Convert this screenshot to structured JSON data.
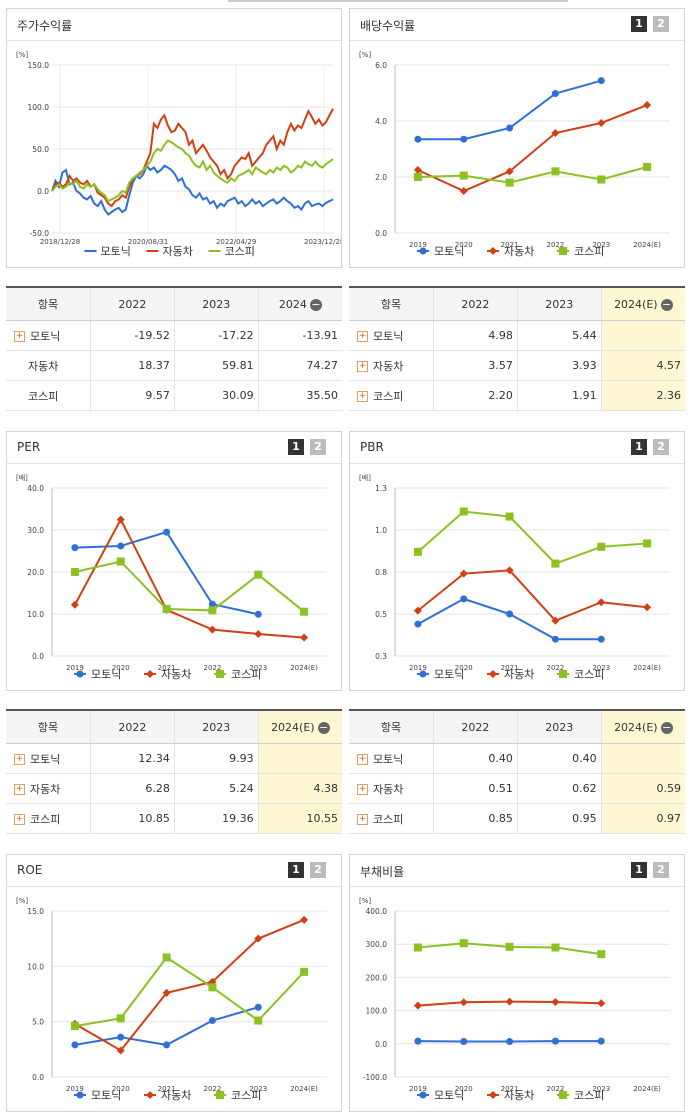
{
  "legend": {
    "motonik": "모토닉",
    "auto": "자동차",
    "kospi": "코스피"
  },
  "colors": {
    "motonik": "#2f6fd6",
    "auto": "#d23f13",
    "kospi": "#8dc021"
  },
  "stock_panel": {
    "title": "주가수익률"
  },
  "div_panel": {
    "title": "배당수익률",
    "page1": "1",
    "page2": "2"
  },
  "per_panel": {
    "title": "PER",
    "page1": "1",
    "page2": "2"
  },
  "pbr_panel": {
    "title": "PBR",
    "page1": "1",
    "page2": "2"
  },
  "roe_panel": {
    "title": "ROE",
    "page1": "1",
    "page2": "2"
  },
  "debt_panel": {
    "title": "부채비율",
    "page1": "1",
    "page2": "2"
  },
  "chart_data": [
    {
      "id": "stock",
      "type": "line",
      "unit": "[%]",
      "ylim": [
        -50,
        150
      ],
      "yticks": [
        "150.0",
        "100.0",
        "50.0",
        "0.0",
        "-50.0"
      ],
      "xticks": [
        "2018/12/28",
        "2020/08/31",
        "2022/04/29",
        "2023/12/28"
      ],
      "series": [
        {
          "key": "motonik",
          "values": [
            0,
            12,
            5,
            22,
            25,
            8,
            10,
            0,
            -3,
            -8,
            -10,
            -6,
            -15,
            -18,
            -12,
            -22,
            -28,
            -25,
            -22,
            -20,
            -25,
            -22,
            -5,
            10,
            18,
            15,
            20,
            30,
            25,
            28,
            22,
            25,
            30,
            28,
            25,
            20,
            12,
            15,
            5,
            2,
            -5,
            -8,
            -3,
            -10,
            -8,
            -15,
            -12,
            -20,
            -15,
            -18,
            -12,
            -10,
            -8,
            -15,
            -12,
            -18,
            -15,
            -10,
            -15,
            -12,
            -18,
            -15,
            -12,
            -10,
            -15,
            -12,
            -8,
            -12,
            -15,
            -20,
            -18,
            -22,
            -15,
            -12,
            -18,
            -16,
            -15,
            -18,
            -14,
            -12,
            -10
          ]
        },
        {
          "key": "auto",
          "values": [
            0,
            8,
            10,
            5,
            8,
            18,
            12,
            15,
            10,
            8,
            12,
            5,
            8,
            -2,
            -5,
            -8,
            -15,
            -18,
            -12,
            -10,
            -5,
            -8,
            5,
            15,
            18,
            20,
            25,
            35,
            45,
            80,
            75,
            85,
            90,
            78,
            70,
            72,
            80,
            75,
            70,
            55,
            60,
            45,
            50,
            55,
            48,
            40,
            35,
            30,
            20,
            25,
            15,
            20,
            30,
            35,
            40,
            38,
            45,
            30,
            35,
            40,
            45,
            55,
            60,
            65,
            50,
            60,
            55,
            70,
            80,
            72,
            78,
            75,
            85,
            95,
            88,
            80,
            85,
            78,
            82,
            90,
            98
          ]
        },
        {
          "key": "kospi",
          "values": [
            0,
            5,
            8,
            3,
            5,
            10,
            8,
            12,
            5,
            3,
            8,
            5,
            8,
            2,
            -2,
            -5,
            -12,
            -10,
            -8,
            -5,
            0,
            -2,
            10,
            15,
            18,
            22,
            25,
            30,
            35,
            45,
            50,
            48,
            55,
            60,
            58,
            55,
            52,
            50,
            45,
            42,
            35,
            30,
            28,
            35,
            25,
            30,
            22,
            18,
            15,
            12,
            10,
            15,
            12,
            18,
            20,
            22,
            25,
            20,
            28,
            25,
            22,
            20,
            25,
            22,
            28,
            25,
            30,
            28,
            22,
            25,
            30,
            28,
            35,
            32,
            30,
            35,
            30,
            28,
            32,
            35,
            38
          ]
        }
      ]
    },
    {
      "id": "div",
      "type": "line",
      "unit": "[%]",
      "ylim": [
        0,
        6
      ],
      "yticks": [
        "6.0",
        "4.0",
        "2.0",
        "0.0"
      ],
      "categories": [
        "2019",
        "2020",
        "2021",
        "2022",
        "2023",
        "2024(E)"
      ],
      "series": [
        {
          "key": "motonik",
          "values": [
            3.35,
            3.35,
            3.75,
            4.98,
            5.44,
            null
          ]
        },
        {
          "key": "auto",
          "values": [
            2.25,
            1.5,
            2.2,
            3.57,
            3.93,
            4.57
          ]
        },
        {
          "key": "kospi",
          "values": [
            2.0,
            2.05,
            1.8,
            2.2,
            1.91,
            2.36
          ]
        }
      ]
    },
    {
      "id": "per",
      "type": "line",
      "unit": "[배]",
      "ylim": [
        0,
        40
      ],
      "yticks": [
        "40.0",
        "30.0",
        "20.0",
        "10.0",
        "0.0"
      ],
      "categories": [
        "2019",
        "2020",
        "2021",
        "2022",
        "2023",
        "2024(E)"
      ],
      "series": [
        {
          "key": "motonik",
          "values": [
            25.8,
            26.2,
            29.5,
            12.34,
            9.93,
            null
          ]
        },
        {
          "key": "auto",
          "values": [
            12.2,
            32.5,
            11.0,
            6.28,
            5.24,
            4.38
          ]
        },
        {
          "key": "kospi",
          "values": [
            20.0,
            22.5,
            11.2,
            10.85,
            19.36,
            10.55
          ]
        }
      ]
    },
    {
      "id": "pbr",
      "type": "line",
      "unit": "[배]",
      "ylim": [
        0.3,
        1.3
      ],
      "yticks": [
        "1.3",
        "1.0",
        "0.8",
        "0.5",
        "0.3"
      ],
      "categories": [
        "2019",
        "2020",
        "2021",
        "2022",
        "2023",
        "2024(E)"
      ],
      "series": [
        {
          "key": "motonik",
          "values": [
            0.49,
            0.64,
            0.55,
            0.4,
            0.4,
            null
          ]
        },
        {
          "key": "auto",
          "values": [
            0.57,
            0.79,
            0.81,
            0.51,
            0.62,
            0.59
          ]
        },
        {
          "key": "kospi",
          "values": [
            0.92,
            1.16,
            1.13,
            0.85,
            0.95,
            0.97
          ]
        }
      ]
    },
    {
      "id": "roe",
      "type": "line",
      "unit": "[%]",
      "ylim": [
        0,
        15
      ],
      "yticks": [
        "15.0",
        "10.0",
        "5.0",
        "0.0"
      ],
      "categories": [
        "2019",
        "2020",
        "2021",
        "2022",
        "2023",
        "2024(E)"
      ],
      "series": [
        {
          "key": "motonik",
          "values": [
            2.9,
            3.6,
            2.9,
            5.1,
            6.3,
            null
          ]
        },
        {
          "key": "auto",
          "values": [
            4.8,
            2.4,
            7.6,
            8.6,
            12.5,
            14.2
          ]
        },
        {
          "key": "kospi",
          "values": [
            4.6,
            5.3,
            10.8,
            8.1,
            5.1,
            9.5
          ]
        }
      ]
    },
    {
      "id": "debt",
      "type": "line",
      "unit": "[%]",
      "ylim": [
        -100,
        400
      ],
      "yticks": [
        "400.0",
        "300.0",
        "200.0",
        "100.0",
        "0.0",
        "-100.0"
      ],
      "categories": [
        "2019",
        "2020",
        "2021",
        "2022",
        "2023",
        "2024(E)"
      ],
      "series": [
        {
          "key": "motonik",
          "values": [
            8,
            7,
            7,
            8,
            8,
            null
          ]
        },
        {
          "key": "auto",
          "values": [
            115,
            125,
            127,
            126,
            122,
            null
          ]
        },
        {
          "key": "kospi",
          "values": [
            290,
            303,
            292,
            290,
            270,
            null
          ]
        }
      ]
    }
  ],
  "tables": {
    "stock": {
      "headers": [
        "항목",
        "2022",
        "2023",
        "2024"
      ],
      "rows": [
        {
          "name": "모토닉",
          "plus": true,
          "values": [
            "-19.52",
            "-17.22",
            "-13.91"
          ]
        },
        {
          "name": "자동차",
          "plus": false,
          "values": [
            "18.37",
            "59.81",
            "74.27"
          ]
        },
        {
          "name": "코스피",
          "plus": false,
          "values": [
            "9.57",
            "30.09",
            "35.50"
          ]
        }
      ]
    },
    "div": {
      "headers": [
        "항목",
        "2022",
        "2023",
        "2024(E)"
      ],
      "rows": [
        {
          "name": "모토닉",
          "plus": true,
          "values": [
            "4.98",
            "5.44",
            ""
          ]
        },
        {
          "name": "자동차",
          "plus": true,
          "values": [
            "3.57",
            "3.93",
            "4.57"
          ]
        },
        {
          "name": "코스피",
          "plus": true,
          "values": [
            "2.20",
            "1.91",
            "2.36"
          ]
        }
      ]
    },
    "per": {
      "headers": [
        "항목",
        "2022",
        "2023",
        "2024(E)"
      ],
      "rows": [
        {
          "name": "모토닉",
          "plus": true,
          "values": [
            "12.34",
            "9.93",
            ""
          ]
        },
        {
          "name": "자동차",
          "plus": true,
          "values": [
            "6.28",
            "5.24",
            "4.38"
          ]
        },
        {
          "name": "코스피",
          "plus": true,
          "values": [
            "10.85",
            "19.36",
            "10.55"
          ]
        }
      ]
    },
    "pbr": {
      "headers": [
        "항목",
        "2022",
        "2023",
        "2024(E)"
      ],
      "rows": [
        {
          "name": "모토닉",
          "plus": true,
          "values": [
            "0.40",
            "0.40",
            ""
          ]
        },
        {
          "name": "자동차",
          "plus": true,
          "values": [
            "0.51",
            "0.62",
            "0.59"
          ]
        },
        {
          "name": "코스피",
          "plus": true,
          "values": [
            "0.85",
            "0.95",
            "0.97"
          ]
        }
      ]
    }
  }
}
